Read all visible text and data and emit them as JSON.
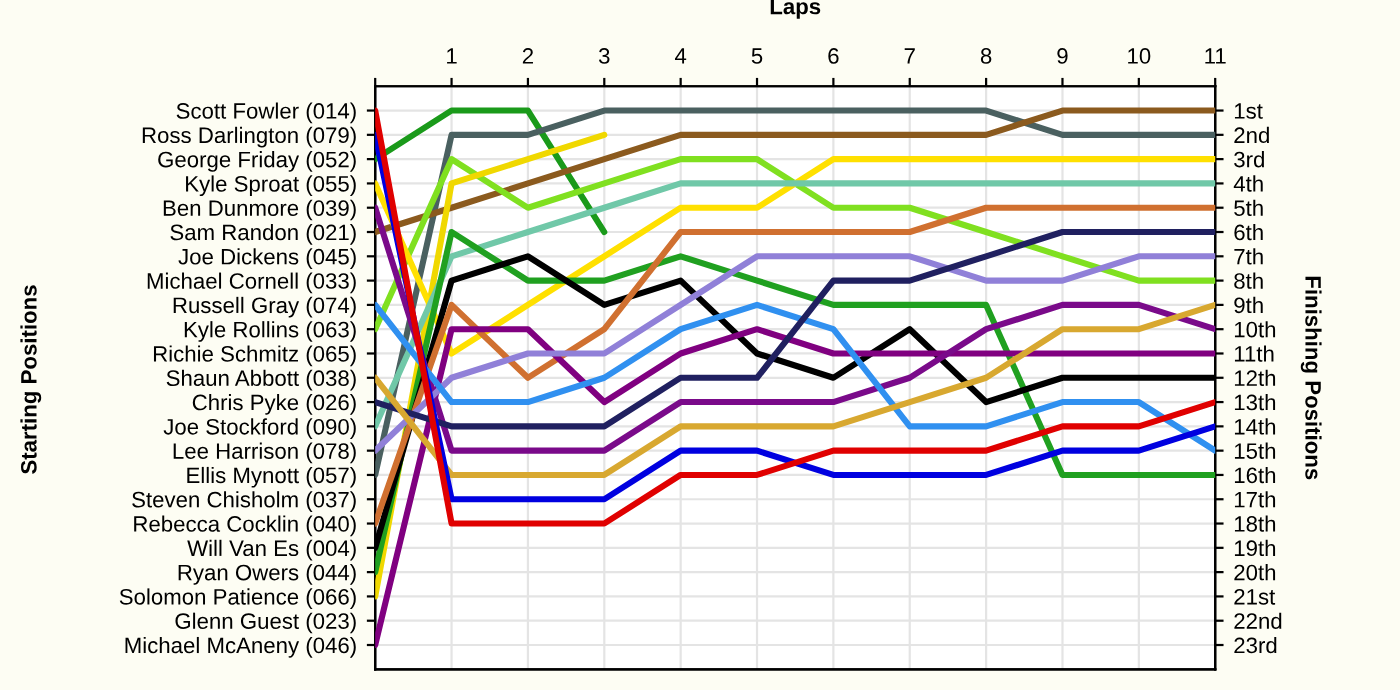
{
  "chart_data": {
    "type": "line",
    "xlabel": "Laps",
    "y2label": "Finishing Positions",
    "grid": true,
    "x": [
      0,
      1,
      2,
      3,
      4,
      5,
      6,
      7,
      8,
      9,
      10,
      11
    ],
    "xlim": [
      0,
      11
    ],
    "xticks": [
      {
        "value": 0,
        "label": null
      },
      1,
      2,
      3,
      4,
      5,
      6,
      7,
      8,
      9,
      10,
      11
    ],
    "annotations": [
      "Scott Fowler (014)",
      "Ross Darlington (079)",
      "George Friday (052)",
      "Kyle Sproat (055)",
      "Ben Dunmore (039)",
      "Sam Randon (021)",
      "Joe Dickens (045)",
      "Michael Cornell (033)",
      "Russell Gray (074)",
      "Kyle Rollins (063)",
      "Richie Schmitz (065)",
      "Shaun Abbott (038)",
      "Chris Pyke (026)",
      "Joe Stockford (090)",
      "Lee Harrison (078)",
      "Ellis Mynott (057)",
      "Steven Chisholm (037)",
      "Rebecca Cocklin (040)",
      "Will Van Es (004)",
      "Ryan Owers (044)",
      "Solomon Patience (066)",
      "Glenn Guest (023)",
      "Michael McAneny (046)",
      "Starting Positions"
    ],
    "y2lim": [
      24,
      0
    ],
    "y2ticks": [
      {
        "value": 1,
        "label": "1st"
      },
      {
        "value": 2,
        "label": "2nd"
      },
      {
        "value": 3,
        "label": "3rd"
      },
      {
        "value": 4,
        "label": "4th"
      },
      {
        "value": 5,
        "label": "5th"
      },
      {
        "value": 6,
        "label": "6th"
      },
      {
        "value": 7,
        "label": "7th"
      },
      {
        "value": 8,
        "label": "8th"
      },
      {
        "value": 9,
        "label": "9th"
      },
      {
        "value": 10,
        "label": "10th"
      },
      {
        "value": 11,
        "label": "11th"
      },
      {
        "value": 12,
        "label": "12th"
      },
      {
        "value": 13,
        "label": "13th"
      },
      {
        "value": 14,
        "label": "14th"
      },
      {
        "value": 15,
        "label": "15th"
      },
      {
        "value": 16,
        "label": "16th"
      },
      {
        "value": 17,
        "label": "17th"
      },
      {
        "value": 18,
        "label": "18th"
      },
      {
        "value": 19,
        "label": "19th"
      },
      {
        "value": 20,
        "label": "20th"
      },
      {
        "value": 21,
        "label": "21st"
      },
      {
        "value": 22,
        "label": "22nd"
      },
      {
        "value": 23,
        "label": "23rd"
      }
    ],
    "series": [
      {
        "axis": "y2",
        "color": "#1a9a1a",
        "values": [
          3,
          1,
          1,
          6,
          null,
          null,
          null,
          null,
          null,
          null,
          null,
          null
        ]
      },
      {
        "axis": "y2",
        "color": "#4a6060",
        "values": [
          16,
          2,
          2,
          1,
          1,
          1,
          1,
          1,
          1,
          2,
          2,
          2
        ]
      },
      {
        "axis": "y2",
        "color": "#8b5a1e",
        "values": [
          6,
          5,
          4,
          3,
          2,
          2,
          2,
          2,
          2,
          1,
          1,
          1
        ]
      },
      {
        "axis": "y2",
        "color": "#80e020",
        "values": [
          10,
          3,
          5,
          4,
          3,
          3,
          5,
          5,
          6,
          7,
          8,
          8
        ]
      },
      {
        "axis": "y2",
        "color": "#f0d800",
        "values": [
          21,
          4,
          3,
          2,
          null,
          null,
          null,
          null,
          null,
          null,
          null,
          null
        ]
      },
      {
        "axis": "y2",
        "color": "#ffe000",
        "values": [
          4,
          11,
          9,
          7,
          5,
          5,
          3,
          3,
          3,
          3,
          3,
          3
        ]
      },
      {
        "axis": "y2",
        "color": "#70c8a8",
        "values": [
          14,
          7,
          6,
          5,
          4,
          4,
          4,
          4,
          4,
          4,
          4,
          4
        ]
      },
      {
        "axis": "y2",
        "color": "#20a020",
        "values": [
          20,
          6,
          8,
          8,
          7,
          8,
          9,
          9,
          9,
          16,
          16,
          16
        ]
      },
      {
        "axis": "y2",
        "color": "#000000",
        "values": [
          19,
          8,
          7,
          9,
          8,
          11,
          12,
          10,
          13,
          12,
          12,
          12
        ]
      },
      {
        "axis": "y2",
        "color": "#d07030",
        "values": [
          18,
          9,
          12,
          10,
          6,
          6,
          6,
          6,
          5,
          5,
          5,
          5
        ]
      },
      {
        "axis": "y2",
        "color": "#800080",
        "values": [
          23,
          10,
          10,
          13,
          11,
          10,
          11,
          11,
          11,
          11,
          11,
          11
        ]
      },
      {
        "axis": "y2",
        "color": "#7a0a8a",
        "values": [
          5,
          15,
          15,
          15,
          13,
          13,
          13,
          12,
          10,
          9,
          9,
          10
        ]
      },
      {
        "axis": "y2",
        "color": "#9080d8",
        "values": [
          15,
          12,
          11,
          11,
          9,
          7,
          7,
          7,
          8,
          8,
          7,
          7
        ]
      },
      {
        "axis": "y2",
        "color": "#3090f0",
        "values": [
          9,
          13,
          13,
          12,
          10,
          9,
          10,
          14,
          14,
          13,
          13,
          15
        ]
      },
      {
        "axis": "y2",
        "color": "#202060",
        "values": [
          13,
          14,
          14,
          14,
          12,
          12,
          8,
          8,
          7,
          6,
          6,
          6
        ]
      },
      {
        "axis": "y2",
        "color": "#d8a830",
        "values": [
          12,
          16,
          16,
          16,
          14,
          14,
          14,
          13,
          12,
          10,
          10,
          9
        ]
      },
      {
        "axis": "y2",
        "color": "#0000e0",
        "values": [
          2,
          17,
          17,
          17,
          15,
          15,
          16,
          16,
          16,
          15,
          15,
          14
        ]
      },
      {
        "axis": "y2",
        "color": "#e00000",
        "values": [
          1,
          18,
          18,
          18,
          16,
          16,
          15,
          15,
          15,
          14,
          14,
          13
        ]
      }
    ]
  }
}
